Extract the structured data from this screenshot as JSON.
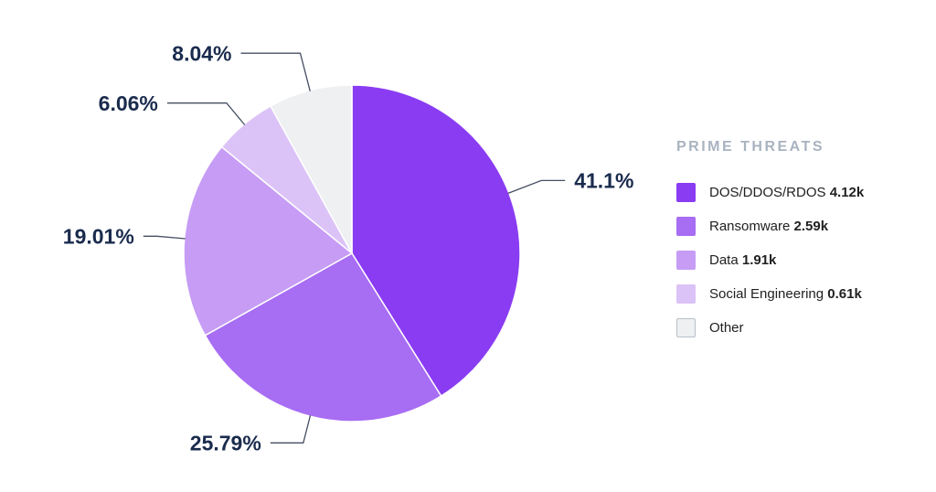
{
  "page": {
    "background_color": "#ffffff"
  },
  "chart_data": {
    "type": "pie",
    "title": "",
    "legend_title": "PRIME THREATS",
    "legend_position": "right",
    "start_angle_deg": 0,
    "direction": "clockwise",
    "slices": [
      {
        "name": "DOS/DDOS/RDOS",
        "value_label": "4.12k",
        "value_k": 4.12,
        "percent": 41.1,
        "percent_label": "41.1%",
        "color": "#8a3cf2"
      },
      {
        "name": "Ransomware",
        "value_label": "2.59k",
        "value_k": 2.59,
        "percent": 25.79,
        "percent_label": "25.79%",
        "color": "#a76df3"
      },
      {
        "name": "Data",
        "value_label": "1.91k",
        "value_k": 1.91,
        "percent": 19.01,
        "percent_label": "19.01%",
        "color": "#c69cf5"
      },
      {
        "name": "Social Engineering",
        "value_label": "0.61k",
        "value_k": 0.61,
        "percent": 6.06,
        "percent_label": "6.06%",
        "color": "#dcc3f7"
      },
      {
        "name": "Other",
        "value_label": "",
        "percent": 8.04,
        "percent_label": "8.04%",
        "color": "#eef0f2",
        "swatch_border": "#b9c0c7"
      }
    ],
    "colors": {
      "percent_label": "#1a2b4d",
      "leader_line": "#454f63",
      "legend_title": "#a9b3c0",
      "legend_text": "#212121",
      "slice_separator": "#ffffff"
    }
  }
}
